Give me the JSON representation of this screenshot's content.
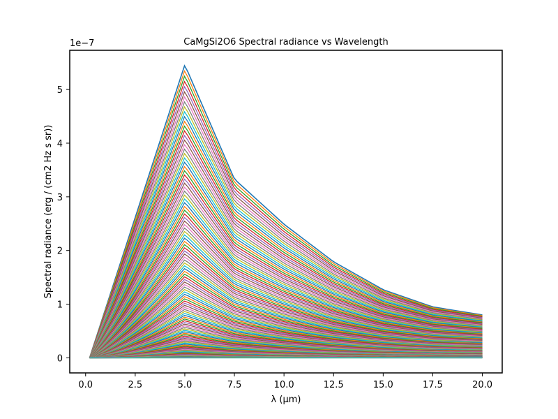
{
  "chart_data": {
    "type": "line",
    "title": "CaMgSi2O6 Spectral radiance vs Wavelength",
    "xlabel": "λ (μm)",
    "ylabel": "Spectral radiance (erg / (cm2 Hz s sr))",
    "y_scale_label": "1e−7",
    "xlim": [
      -0.8,
      21.0
    ],
    "ylim": [
      -0.28,
      5.73
    ],
    "y_unit_multiplier": 1e-07,
    "x_ticks": [
      0.0,
      2.5,
      5.0,
      7.5,
      10.0,
      12.5,
      15.0,
      17.5,
      20.0
    ],
    "x_tick_labels": [
      "0.0",
      "2.5",
      "5.0",
      "7.5",
      "10.0",
      "12.5",
      "15.0",
      "17.5",
      "20.0"
    ],
    "y_ticks": [
      0,
      1,
      2,
      3,
      4,
      5
    ],
    "y_tick_labels": [
      "0",
      "1",
      "2",
      "3",
      "4",
      "5"
    ],
    "grid": false,
    "legend": "none",
    "series_count": 120,
    "colors": [
      "#1f77b4",
      "#ff7f0e",
      "#2ca02c",
      "#d62728",
      "#9467bd",
      "#8c564b",
      "#e377c2",
      "#7f7f7f",
      "#bcbd22",
      "#17becf"
    ],
    "series_envelope": {
      "x": [
        0.2,
        5.0,
        7.5,
        10.0,
        12.5,
        15.0,
        17.5,
        20.0
      ],
      "top_series_y": [
        0.0,
        5.46,
        3.33,
        2.49,
        1.79,
        1.27,
        0.95,
        0.8
      ],
      "x_start": 0.2,
      "x_break": 5.0,
      "x_end": 20.0,
      "peak_max": 5.46,
      "end_max": 0.8
    }
  }
}
